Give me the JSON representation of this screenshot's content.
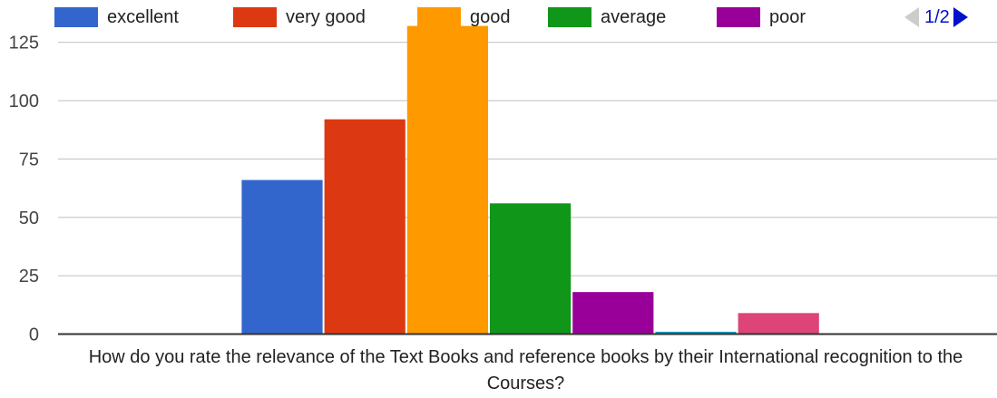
{
  "chart_data": {
    "type": "bar",
    "title": "",
    "xlabel": "How do you rate the relevance of the Text Books and reference books by their International recognition to the Courses?",
    "ylabel": "",
    "ylim": [
      0,
      135
    ],
    "yticks": [
      0,
      25,
      50,
      75,
      100,
      125
    ],
    "grid": true,
    "legend_position": "top",
    "categories": [
      "excellent",
      "very good",
      "good",
      "average",
      "poor",
      "(unlabeled teal)",
      "(unlabeled pink)"
    ],
    "values": [
      66,
      92,
      132,
      56,
      18,
      1,
      9
    ],
    "colors": [
      "#3366cc",
      "#dc3912",
      "#ff9900",
      "#109618",
      "#990099",
      "#0099c6",
      "#dd4477"
    ],
    "legend": [
      {
        "label": "excellent",
        "color": "#3366cc"
      },
      {
        "label": "very good",
        "color": "#dc3912"
      },
      {
        "label": "good",
        "color": "#ff9900"
      },
      {
        "label": "average",
        "color": "#109618"
      },
      {
        "label": "poor",
        "color": "#990099"
      }
    ]
  },
  "pager": {
    "text": "1/2",
    "active_color": "#0011cc",
    "inactive_color": "#cccccc"
  }
}
